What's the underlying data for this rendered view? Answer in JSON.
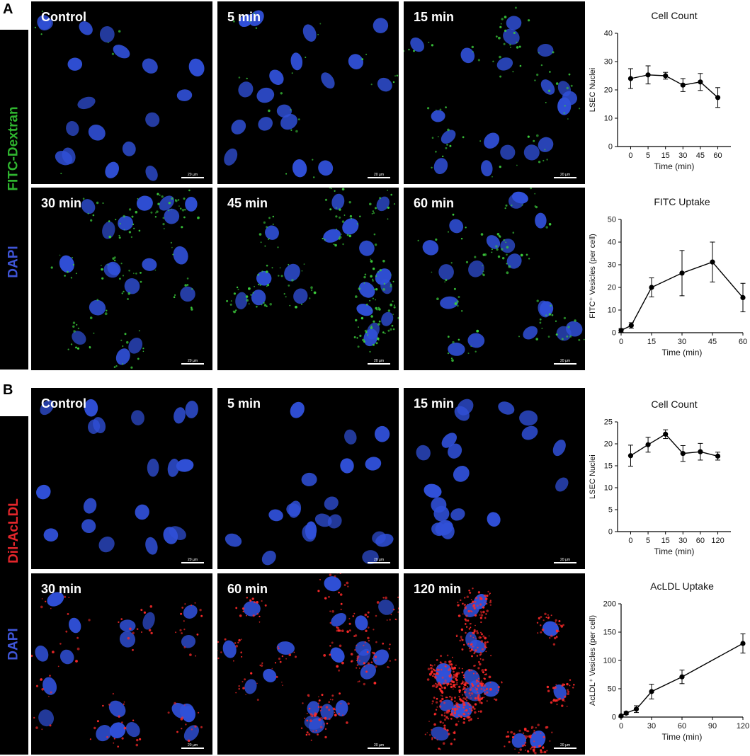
{
  "panels": {
    "a": {
      "letter": "A",
      "stain_label": "FITC-Dextran",
      "counter_label": "DAPI",
      "stain_color": "#2fb52f",
      "counter_color": "#3f55d6",
      "tiles": [
        "Control",
        "5 min",
        "15 min",
        "30 min",
        "45 min",
        "60 min"
      ],
      "scale_text": "20 µm",
      "vesicle_color": "#3ccf3c",
      "vesicle_density": [
        8,
        25,
        70,
        120,
        170,
        90
      ]
    },
    "b": {
      "letter": "B",
      "stain_label": "Dil-AcLDL",
      "counter_label": "DAPI",
      "stain_color": "#e3262b",
      "counter_color": "#3f55d6",
      "tiles": [
        "Control",
        "5 min",
        "15 min",
        "30 min",
        "60 min",
        "120 min"
      ],
      "scale_text": "20 µm",
      "vesicle_color": "#ff2a2a",
      "vesicle_density": [
        0,
        0,
        0,
        90,
        220,
        600
      ]
    }
  },
  "nucleus_color": "#3050d8",
  "chart_data": [
    {
      "type": "line",
      "title": "Cell Count",
      "xlabel": "Time (min)",
      "ylabel": "LSEC Nuclei",
      "x_categorical": true,
      "categories": [
        "0",
        "5",
        "15",
        "30",
        "45",
        "60"
      ],
      "values": [
        24,
        25.3,
        25,
        21.7,
        22.8,
        17.3
      ],
      "errors": [
        3.5,
        3.2,
        1.2,
        2.3,
        3.0,
        3.5
      ],
      "ylim": [
        0,
        40
      ],
      "yticks": [
        0,
        10,
        20,
        30,
        40
      ]
    },
    {
      "type": "line",
      "title": "FITC Uptake",
      "xlabel": "Time (min)",
      "ylabel": "FITC⁺ Vesicles (per cell)",
      "x_categorical": false,
      "x": [
        0,
        5,
        15,
        30,
        45,
        60
      ],
      "values": [
        1,
        3.2,
        20,
        26.3,
        31.2,
        15.5
      ],
      "errors": [
        0.8,
        1.2,
        4.2,
        10,
        8.8,
        6.3
      ],
      "xlim": [
        0,
        60
      ],
      "xticks": [
        0,
        15,
        30,
        45,
        60
      ],
      "ylim": [
        0,
        50
      ],
      "yticks": [
        0,
        10,
        20,
        30,
        40,
        50
      ]
    },
    {
      "type": "line",
      "title": "Cell Count",
      "xlabel": "Time (min)",
      "ylabel": "LSEC Nuclei",
      "x_categorical": true,
      "categories": [
        "0",
        "5",
        "15",
        "30",
        "60",
        "120"
      ],
      "values": [
        17.3,
        19.8,
        22.2,
        17.8,
        18.2,
        17.2
      ],
      "errors": [
        2.4,
        1.7,
        1.0,
        1.8,
        1.9,
        0.9
      ],
      "ylim": [
        0,
        25
      ],
      "yticks": [
        0,
        5,
        10,
        15,
        20,
        25
      ]
    },
    {
      "type": "line",
      "title": "AcLDL Uptake",
      "xlabel": "Time (min)",
      "ylabel": "AcLDL⁺ Vesicles (per cell)",
      "x_categorical": false,
      "x": [
        0,
        5,
        15,
        30,
        60,
        120
      ],
      "values": [
        2,
        7,
        14,
        45,
        71,
        130
      ],
      "errors": [
        1.5,
        2.5,
        6,
        13,
        12,
        17
      ],
      "xlim": [
        0,
        120
      ],
      "xticks": [
        0,
        30,
        60,
        90,
        120
      ],
      "ylim": [
        0,
        200
      ],
      "yticks": [
        0,
        50,
        100,
        150,
        200
      ]
    }
  ]
}
